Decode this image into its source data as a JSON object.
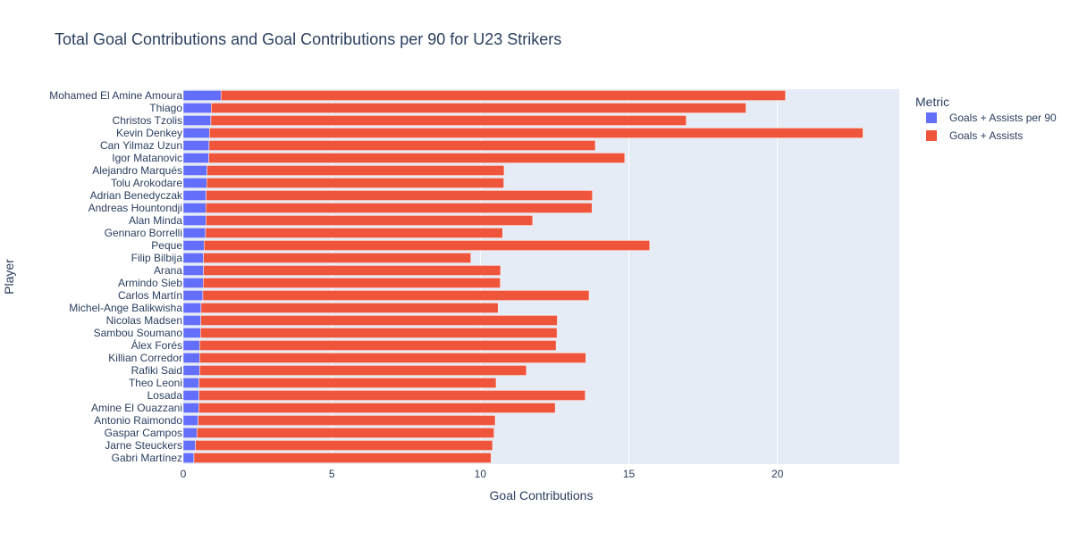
{
  "chart_data": {
    "type": "bar",
    "orientation": "horizontal",
    "barmode": "stacked",
    "title": "Total Goal Contributions and Goal Contributions per 90 for U23 Strikers",
    "xlabel": "Goal Contributions",
    "ylabel": "Player",
    "xlim": [
      0,
      24.1
    ],
    "xticks": [
      0,
      5,
      10,
      15,
      20
    ],
    "grid": true,
    "legend_title": "Metric",
    "legend_position": "top-right outside plot",
    "background_color": "#e5ecf6",
    "categories": [
      "Mohamed El Amine Amoura",
      "Thiago",
      "Christos Tzolis",
      "Kevin Denkey",
      "Can Yilmaz Uzun",
      "Igor Matanovic",
      "Alejandro Marqués",
      "Tolu Arokodare",
      "Adrian Benedyczak",
      "Andreas Hountondji",
      "Alan Minda",
      "Gennaro Borrelli",
      "Peque",
      "Filip Bilbija",
      "Arana",
      "Armindo Sieb",
      "Carlos Martín",
      "Michel-Ange Balikwisha",
      "Nicolas Madsen",
      "Sambou Soumano",
      "Álex Forés",
      "Killian Corredor",
      "Rafiki Said",
      "Theo Leoni",
      "Losada",
      "Amine El Ouazzani",
      "Antonio Raimondo",
      "Gaspar Campos",
      "Jarne Steuckers",
      "Gabri Martínez"
    ],
    "series": [
      {
        "name": "Goals + Assists per 90",
        "color": "#636efa",
        "values": [
          1.27,
          0.94,
          0.93,
          0.88,
          0.87,
          0.86,
          0.8,
          0.79,
          0.77,
          0.76,
          0.76,
          0.75,
          0.7,
          0.68,
          0.68,
          0.67,
          0.66,
          0.6,
          0.59,
          0.58,
          0.55,
          0.55,
          0.55,
          0.53,
          0.53,
          0.52,
          0.5,
          0.46,
          0.41,
          0.36
        ]
      },
      {
        "name": "Goals + Assists",
        "color": "#ef553b",
        "values": [
          19,
          18,
          16,
          22,
          13,
          14,
          10,
          10,
          13,
          13,
          11,
          10,
          15,
          9,
          10,
          10,
          13,
          10,
          12,
          12,
          12,
          13,
          11,
          10,
          13,
          12,
          10,
          10,
          10,
          10
        ]
      }
    ]
  }
}
